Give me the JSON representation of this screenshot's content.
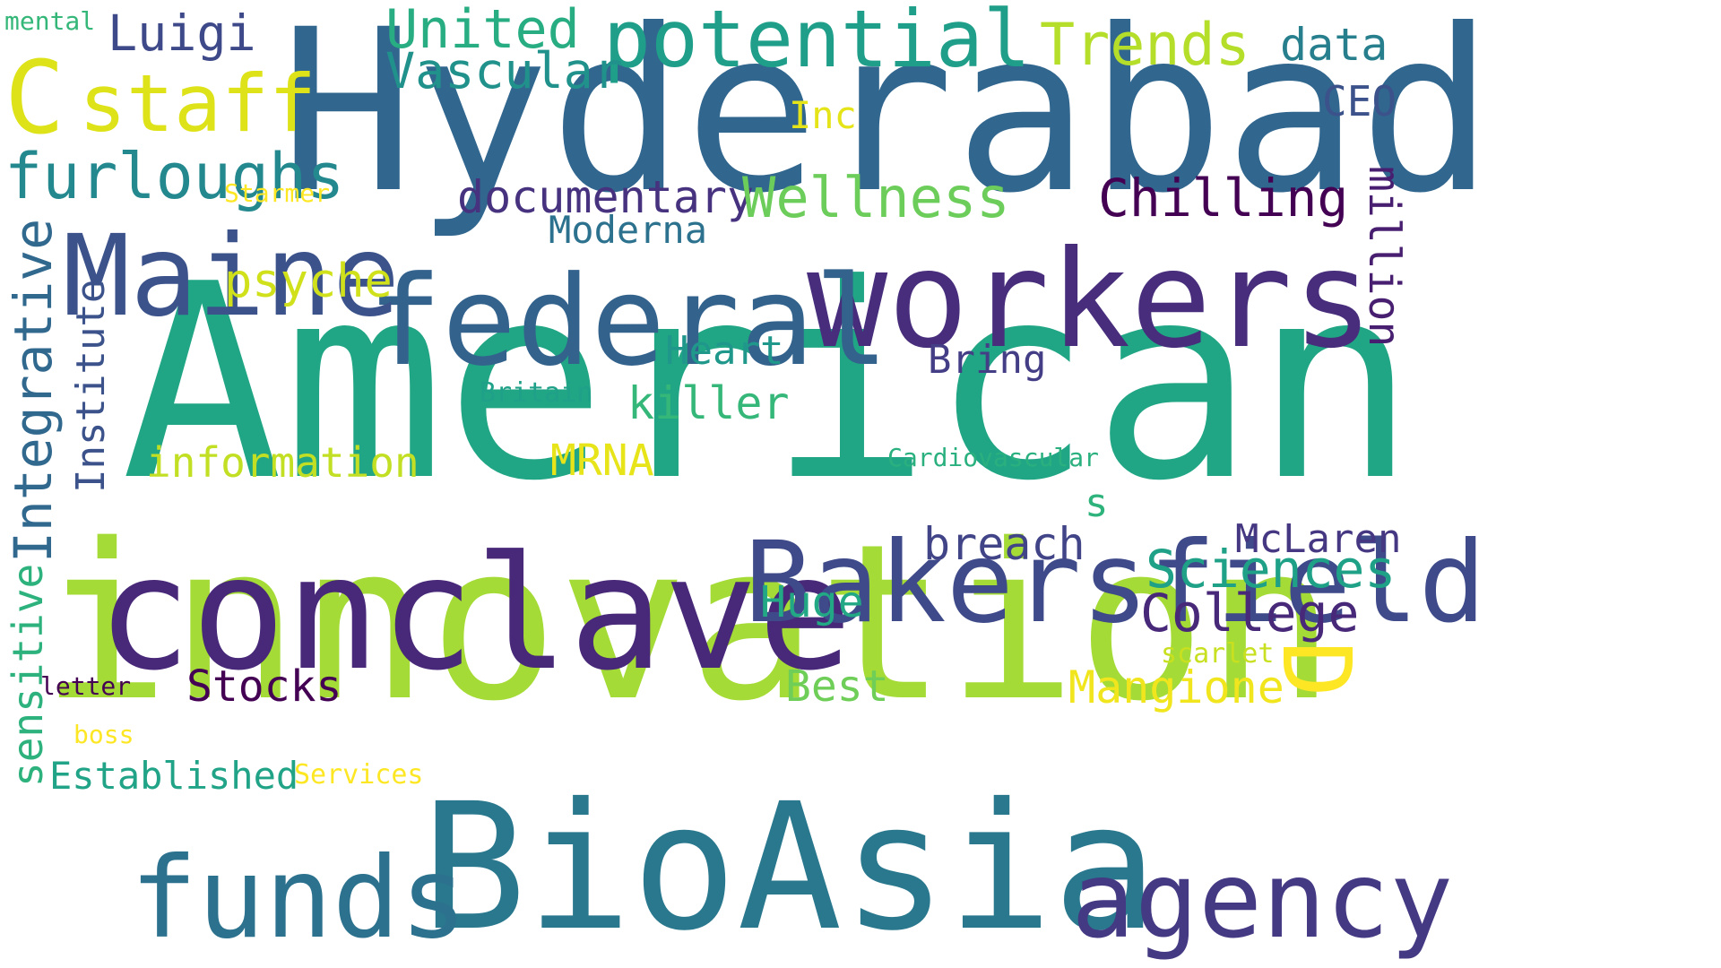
{
  "words": [
    {
      "text": "American",
      "color": "#21a685"
    },
    {
      "text": "Hyderabad",
      "color": "#31668e"
    },
    {
      "text": "innovation",
      "color": "#a5db36"
    },
    {
      "text": "BioAsia",
      "color": "#2a788e"
    },
    {
      "text": "workers",
      "color": "#472d7b"
    },
    {
      "text": "conclave",
      "color": "#482878"
    },
    {
      "text": "federal",
      "color": "#33638d"
    },
    {
      "text": "Bakersfield",
      "color": "#3e4a89"
    },
    {
      "text": "Maine",
      "color": "#3b528b"
    },
    {
      "text": "funds",
      "color": "#2c728e"
    },
    {
      "text": "agency",
      "color": "#443983"
    },
    {
      "text": "potential",
      "color": "#1f9e89"
    },
    {
      "text": "C",
      "color": "#dde318"
    },
    {
      "text": "staff",
      "color": "#dde318"
    },
    {
      "text": "furloughs",
      "color": "#23898e"
    },
    {
      "text": "Luigi",
      "color": "#3e4989"
    },
    {
      "text": "United",
      "color": "#27ad81"
    },
    {
      "text": "Vascular",
      "color": "#21918c"
    },
    {
      "text": "Trends",
      "color": "#b5de2b"
    },
    {
      "text": "data",
      "color": "#277f8e"
    },
    {
      "text": "CEO",
      "color": "#3b528b"
    },
    {
      "text": "Inc",
      "color": "#e5e419"
    },
    {
      "text": "mental",
      "color": "#35b779"
    },
    {
      "text": "documentary",
      "color": "#46327e"
    },
    {
      "text": "Wellness",
      "color": "#6ccd5a"
    },
    {
      "text": "Chilling",
      "color": "#440154"
    },
    {
      "text": "Starmer",
      "color": "#fde725"
    },
    {
      "text": "Moderna",
      "color": "#2c728e"
    },
    {
      "text": "psyche",
      "color": "#d0e11c"
    },
    {
      "text": "million",
      "color": "#481f70"
    },
    {
      "text": "Integrative",
      "color": "#31688e"
    },
    {
      "text": "Institute",
      "color": "#3b528b"
    },
    {
      "text": "Heart",
      "color": "#1f978b"
    },
    {
      "text": "Bring",
      "color": "#433e85"
    },
    {
      "text": "Britain",
      "color": "#1fa088"
    },
    {
      "text": "killer",
      "color": "#35b779"
    },
    {
      "text": "information",
      "color": "#c2df23"
    },
    {
      "text": "MRNA",
      "color": "#e7e419"
    },
    {
      "text": "Cardiovascular",
      "color": "#2ab07f"
    },
    {
      "text": "s",
      "color": "#2eb37c"
    },
    {
      "text": "breach",
      "color": "#414487"
    },
    {
      "text": "McLaren",
      "color": "#453781"
    },
    {
      "text": "Sciences",
      "color": "#1fa187"
    },
    {
      "text": "College",
      "color": "#482878"
    },
    {
      "text": "Huge",
      "color": "#22a884"
    },
    {
      "text": "D",
      "color": "#fde725"
    },
    {
      "text": "sensitive",
      "color": "#2db27d"
    },
    {
      "text": "scarlet",
      "color": "#c8e020"
    },
    {
      "text": "Mangione",
      "color": "#f1e51d"
    },
    {
      "text": "Best",
      "color": "#6ece58"
    },
    {
      "text": "Stocks",
      "color": "#440154"
    },
    {
      "text": "letter",
      "color": "#440154"
    },
    {
      "text": "boss",
      "color": "#fde725"
    },
    {
      "text": "Established",
      "color": "#20a386"
    },
    {
      "text": "Services",
      "color": "#fde725"
    }
  ]
}
